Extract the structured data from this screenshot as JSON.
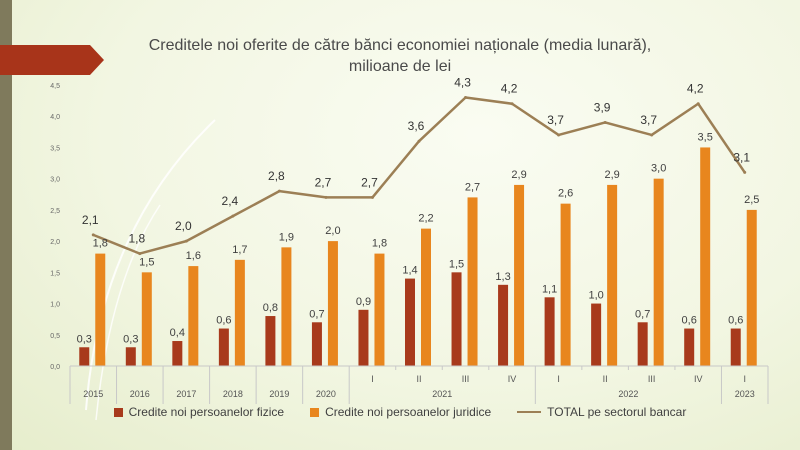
{
  "chart_data": {
    "type": "bar",
    "title_lines": [
      "Creditele noi oferite de către bănci economiei naționale (media lunară),",
      "milioane de lei"
    ],
    "categories": [
      "2015",
      "2016",
      "2017",
      "2018",
      "2019",
      "2020",
      "I",
      "II",
      "III",
      "IV",
      "I",
      "II",
      "III",
      "IV",
      "I"
    ],
    "group_labels": [
      {
        "label": "2021",
        "start": 6,
        "end": 9
      },
      {
        "label": "2022",
        "start": 10,
        "end": 13
      },
      {
        "label": "2023",
        "start": 14,
        "end": 14
      }
    ],
    "series": [
      {
        "name": "Credite noi persoanelor fizice",
        "type": "bar",
        "color": "#a83a1c",
        "values": [
          0.3,
          0.3,
          0.4,
          0.6,
          0.8,
          0.7,
          0.9,
          1.4,
          1.5,
          1.3,
          1.1,
          1.0,
          0.7,
          0.6,
          0.6
        ],
        "labels": [
          "0,3",
          "0,3",
          "0,4",
          "0,6",
          "0,8",
          "0,7",
          "0,9",
          "1,4",
          "1,5",
          "1,3",
          "1,1",
          "1,0",
          "0,7",
          "0,6",
          "0,6"
        ]
      },
      {
        "name": "Credite noi persoanelor juridice",
        "type": "bar",
        "color": "#e8861e",
        "values": [
          1.8,
          1.5,
          1.6,
          1.7,
          1.9,
          2.0,
          1.8,
          2.2,
          2.7,
          2.9,
          2.6,
          2.9,
          3.0,
          3.5,
          2.5
        ],
        "labels": [
          "1,8",
          "1,5",
          "1,6",
          "1,7",
          "1,9",
          "2,0",
          "1,8",
          "2,2",
          "2,7",
          "2,9",
          "2,6",
          "2,9",
          "3,0",
          "3,5",
          "2,5"
        ]
      },
      {
        "name": "TOTAL pe sectorul bancar",
        "type": "line",
        "color": "#9c7f55",
        "values": [
          2.1,
          1.8,
          2.0,
          2.4,
          2.8,
          2.7,
          2.7,
          3.6,
          4.3,
          4.2,
          3.7,
          3.9,
          3.7,
          4.2,
          3.1
        ],
        "labels": [
          "2,1",
          "1,8",
          "2,0",
          "2,4",
          "2,8",
          "2,7",
          "2,7",
          "3,6",
          "4,3",
          "4,2",
          "3,7",
          "3,9",
          "3,7",
          "4,2",
          "3,1"
        ]
      }
    ],
    "yticks": [
      "0,0",
      "0,5",
      "1,0",
      "1,5",
      "2,0",
      "2,5",
      "3,0",
      "3,5",
      "4,0",
      "4,5"
    ],
    "ylim": [
      0,
      4.5
    ],
    "xlabel": "",
    "ylabel": "",
    "legend_position": "bottom"
  },
  "legend": {
    "item1": "Credite noi persoanelor fizice",
    "item2": "Credite noi persoanelor juridice",
    "item3": "TOTAL pe sectorul bancar"
  }
}
